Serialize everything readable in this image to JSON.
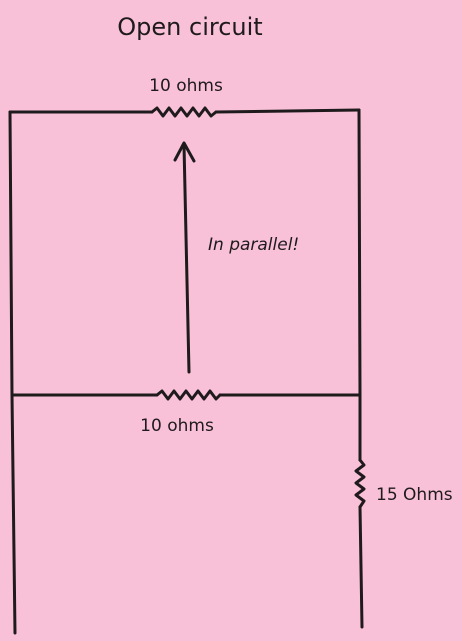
{
  "diagram": {
    "title": "Open circuit",
    "annotation": "In parallel!",
    "resistors": [
      {
        "label": "10 ohms"
      },
      {
        "label": "10 ohms"
      },
      {
        "label": "15 Ohms"
      }
    ]
  },
  "colors": {
    "background": "#f9c1d8",
    "ink": "#1f1a1c"
  }
}
